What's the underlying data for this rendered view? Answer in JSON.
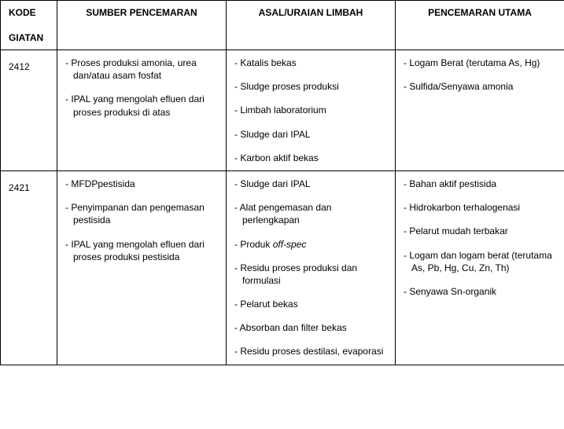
{
  "headers": {
    "kode_line1": "KODE",
    "kode_line2": "GIATAN",
    "sumber": "SUMBER PENCEMARAN",
    "asal": "ASAL/URAIAN LIMBAH",
    "utama": "PENCEMARAN UTAMA"
  },
  "rows": [
    {
      "kode": "2412",
      "sumber": [
        "- Proses produksi amonia, urea dan/atau asam fosfat",
        "- IPAL yang mengolah efluen dari proses produksi di atas"
      ],
      "asal": [
        "- Katalis bekas",
        "- Sludge proses produksi",
        "- Limbah laboratorium",
        "- Sludge dari IPAL",
        "- Karbon aktif bekas"
      ],
      "utama": [
        "- Logam Berat (terutama As, Hg)",
        "- Sulfida/Senyawa amonia"
      ]
    },
    {
      "kode": "2421",
      "sumber": [
        "- MFDPpestisida",
        "- Penyimpanan dan pengemasan pestisida",
        "- IPAL yang mengolah efluen dari proses produksi pestisida"
      ],
      "asal": [
        "- Sludge dari IPAL",
        "- Alat pengemasan dan perlengkapan",
        {
          "prefix": "- Produk ",
          "italic": "off-spec"
        },
        "- Residu proses produksi dan formulasi",
        "- Pelarut bekas",
        "- Absorban dan filter bekas",
        "- Residu proses destilasi, evaporasi"
      ],
      "utama": [
        "- Bahan aktif pestisida",
        "- Hidrokarbon terhalogenasi",
        "- Pelarut mudah terbakar",
        "- Logam dan logam berat (terutama As, Pb, Hg, Cu, Zn, Th)",
        "- Senyawa Sn-organik"
      ]
    }
  ]
}
